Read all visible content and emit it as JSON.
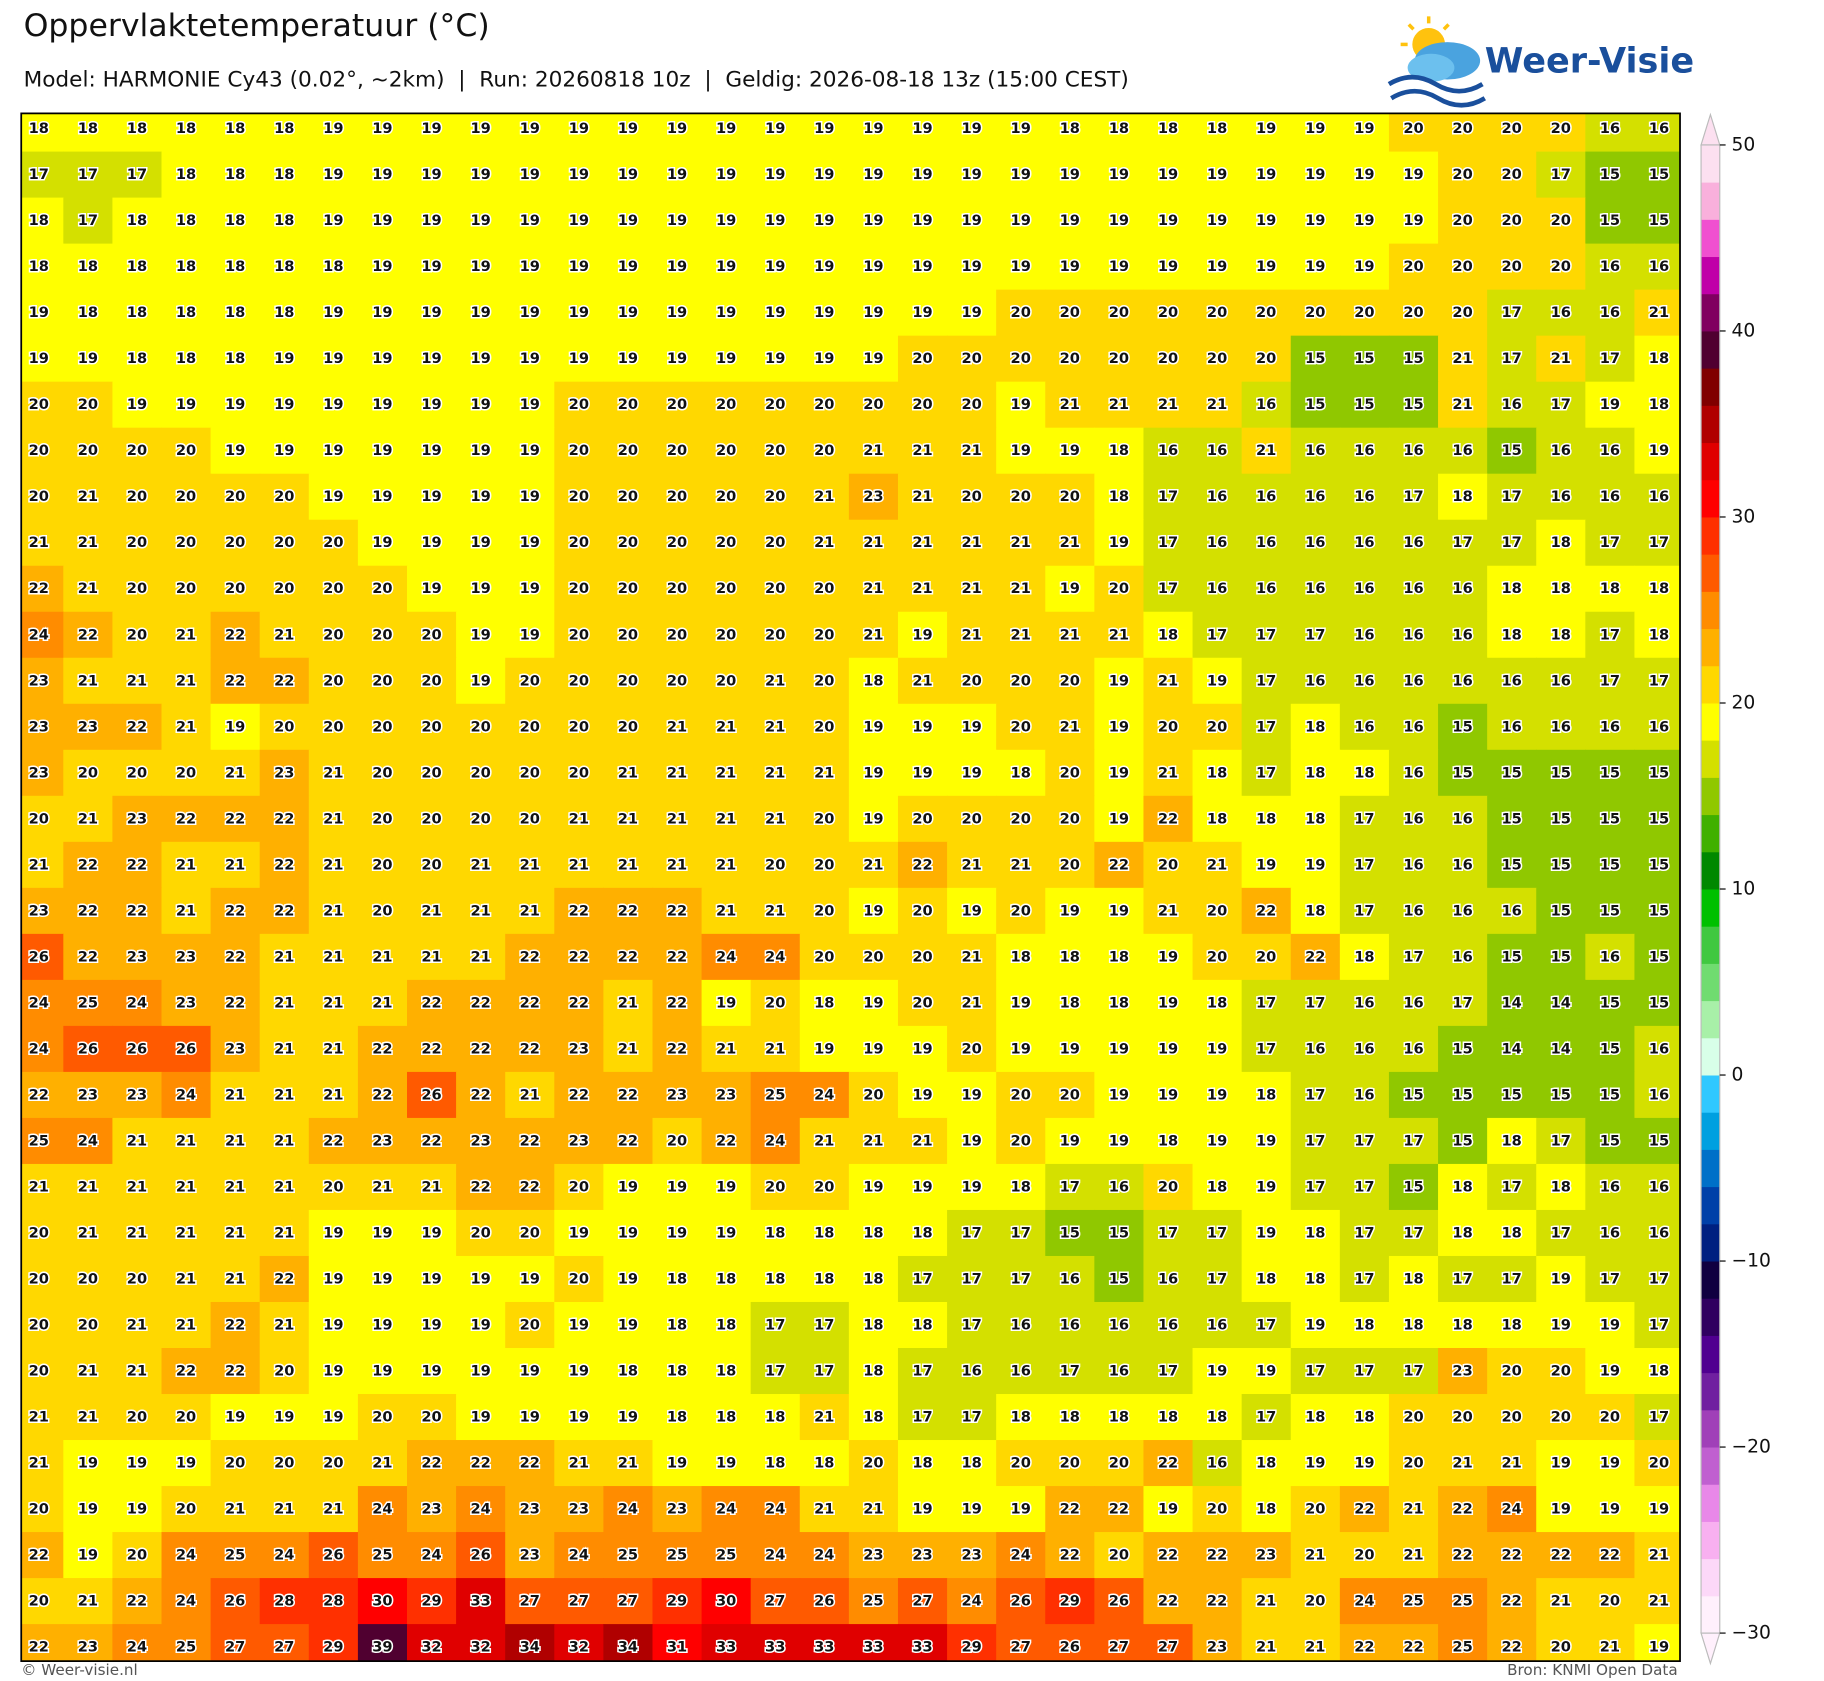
{
  "header": {
    "title": "Oppervlaktetemperatuur (°C)",
    "subtitle": "Model: HARMONIE Cy43 (0.02°, ~2km)  |  Run: 20260818 10z  |  Geldig: 2026-08-18 13z (15:00 CEST)",
    "logo": "Weer-Visie"
  },
  "map": {
    "rows": [
      [
        18,
        18,
        18,
        18,
        18,
        18,
        19,
        19,
        19,
        19,
        19,
        19,
        19,
        19,
        19,
        19,
        19,
        19,
        19,
        19,
        19,
        18,
        18,
        18,
        18,
        19,
        19,
        19,
        20,
        20,
        20,
        20,
        16,
        16
      ],
      [
        17,
        17,
        17,
        18,
        18,
        18,
        19,
        19,
        19,
        19,
        19,
        19,
        19,
        19,
        19,
        19,
        19,
        19,
        19,
        19,
        19,
        19,
        19,
        19,
        19,
        19,
        19,
        19,
        19,
        20,
        20,
        17,
        15,
        15
      ],
      [
        18,
        17,
        18,
        18,
        18,
        18,
        19,
        19,
        19,
        19,
        19,
        19,
        19,
        19,
        19,
        19,
        19,
        19,
        19,
        19,
        19,
        19,
        19,
        19,
        19,
        19,
        19,
        19,
        19,
        20,
        20,
        20,
        15,
        15
      ],
      [
        18,
        18,
        18,
        18,
        18,
        18,
        18,
        19,
        19,
        19,
        19,
        19,
        19,
        19,
        19,
        19,
        19,
        19,
        19,
        19,
        19,
        19,
        19,
        19,
        19,
        19,
        19,
        19,
        20,
        20,
        20,
        20,
        16,
        16
      ],
      [
        19,
        18,
        18,
        18,
        18,
        18,
        19,
        19,
        19,
        19,
        19,
        19,
        19,
        19,
        19,
        19,
        19,
        19,
        19,
        19,
        20,
        20,
        20,
        20,
        20,
        20,
        20,
        20,
        20,
        20,
        17,
        16,
        16,
        21
      ],
      [
        19,
        19,
        18,
        18,
        18,
        19,
        19,
        19,
        19,
        19,
        19,
        19,
        19,
        19,
        19,
        19,
        19,
        19,
        20,
        20,
        20,
        20,
        20,
        20,
        20,
        20,
        15,
        15,
        15,
        21,
        17,
        21,
        17,
        18
      ],
      [
        20,
        20,
        19,
        19,
        19,
        19,
        19,
        19,
        19,
        19,
        19,
        20,
        20,
        20,
        20,
        20,
        20,
        20,
        20,
        20,
        19,
        21,
        21,
        21,
        21,
        16,
        15,
        15,
        15,
        21,
        16,
        17,
        19,
        18
      ],
      [
        20,
        20,
        20,
        20,
        19,
        19,
        19,
        19,
        19,
        19,
        19,
        20,
        20,
        20,
        20,
        20,
        20,
        21,
        21,
        21,
        19,
        19,
        18,
        16,
        16,
        21,
        16,
        16,
        16,
        16,
        15,
        16,
        16,
        19
      ],
      [
        20,
        21,
        20,
        20,
        20,
        20,
        19,
        19,
        19,
        19,
        19,
        20,
        20,
        20,
        20,
        20,
        21,
        23,
        21,
        20,
        20,
        20,
        18,
        17,
        16,
        16,
        16,
        16,
        17,
        18,
        17,
        16,
        16,
        16
      ],
      [
        21,
        21,
        20,
        20,
        20,
        20,
        20,
        19,
        19,
        19,
        19,
        20,
        20,
        20,
        20,
        20,
        21,
        21,
        21,
        21,
        21,
        21,
        19,
        17,
        16,
        16,
        16,
        16,
        16,
        17,
        17,
        18,
        17,
        17
      ],
      [
        22,
        21,
        20,
        20,
        20,
        20,
        20,
        20,
        19,
        19,
        19,
        20,
        20,
        20,
        20,
        20,
        20,
        21,
        21,
        21,
        21,
        19,
        20,
        17,
        16,
        16,
        16,
        16,
        16,
        16,
        18,
        18,
        18,
        18
      ],
      [
        24,
        22,
        20,
        21,
        22,
        21,
        20,
        20,
        20,
        19,
        19,
        20,
        20,
        20,
        20,
        20,
        20,
        21,
        19,
        21,
        21,
        21,
        21,
        18,
        17,
        17,
        17,
        16,
        16,
        16,
        18,
        18,
        17,
        18
      ],
      [
        23,
        21,
        21,
        21,
        22,
        22,
        20,
        20,
        20,
        19,
        20,
        20,
        20,
        20,
        20,
        21,
        20,
        18,
        21,
        20,
        20,
        20,
        19,
        21,
        19,
        17,
        16,
        16,
        16,
        16,
        16,
        16,
        17,
        17
      ],
      [
        23,
        23,
        22,
        21,
        19,
        20,
        20,
        20,
        20,
        20,
        20,
        20,
        20,
        21,
        21,
        21,
        20,
        19,
        19,
        19,
        20,
        21,
        19,
        20,
        20,
        17,
        18,
        16,
        16,
        15,
        16,
        16,
        16,
        16
      ],
      [
        23,
        20,
        20,
        20,
        21,
        23,
        21,
        20,
        20,
        20,
        20,
        20,
        21,
        21,
        21,
        21,
        21,
        19,
        19,
        19,
        18,
        20,
        19,
        21,
        18,
        17,
        18,
        18,
        16,
        15,
        15,
        15,
        15,
        15
      ],
      [
        20,
        21,
        23,
        22,
        22,
        22,
        21,
        20,
        20,
        20,
        20,
        21,
        21,
        21,
        21,
        21,
        20,
        19,
        20,
        20,
        20,
        20,
        19,
        22,
        18,
        18,
        18,
        17,
        16,
        16,
        15,
        15,
        15,
        15
      ],
      [
        21,
        22,
        22,
        21,
        21,
        22,
        21,
        20,
        20,
        21,
        21,
        21,
        21,
        21,
        21,
        20,
        20,
        21,
        22,
        21,
        21,
        20,
        22,
        20,
        21,
        19,
        19,
        17,
        16,
        16,
        15,
        15,
        15,
        15
      ],
      [
        23,
        22,
        22,
        21,
        22,
        22,
        21,
        20,
        21,
        21,
        21,
        22,
        22,
        22,
        21,
        21,
        20,
        19,
        20,
        19,
        20,
        19,
        19,
        21,
        20,
        22,
        18,
        17,
        16,
        16,
        16,
        15,
        15,
        15
      ],
      [
        26,
        22,
        23,
        23,
        22,
        21,
        21,
        21,
        21,
        21,
        22,
        22,
        22,
        22,
        24,
        24,
        20,
        20,
        20,
        21,
        18,
        18,
        18,
        19,
        20,
        20,
        22,
        18,
        17,
        16,
        15,
        15,
        16,
        15
      ],
      [
        24,
        25,
        24,
        23,
        22,
        21,
        21,
        21,
        22,
        22,
        22,
        22,
        21,
        22,
        19,
        20,
        18,
        19,
        20,
        21,
        19,
        18,
        18,
        19,
        18,
        17,
        17,
        16,
        16,
        17,
        14,
        14,
        15,
        15
      ],
      [
        24,
        26,
        26,
        26,
        23,
        21,
        21,
        22,
        22,
        22,
        22,
        23,
        21,
        22,
        21,
        21,
        19,
        19,
        19,
        20,
        19,
        19,
        19,
        19,
        19,
        17,
        16,
        16,
        16,
        15,
        14,
        14,
        15,
        16
      ],
      [
        22,
        23,
        23,
        24,
        21,
        21,
        21,
        22,
        26,
        22,
        21,
        22,
        22,
        23,
        23,
        25,
        24,
        20,
        19,
        19,
        20,
        20,
        19,
        19,
        19,
        18,
        17,
        16,
        15,
        15,
        15,
        15,
        15,
        16
      ],
      [
        25,
        24,
        21,
        21,
        21,
        21,
        22,
        23,
        22,
        23,
        22,
        23,
        22,
        20,
        22,
        24,
        21,
        21,
        21,
        19,
        20,
        19,
        19,
        18,
        19,
        19,
        17,
        17,
        17,
        15,
        18,
        17,
        15,
        15
      ],
      [
        21,
        21,
        21,
        21,
        21,
        21,
        20,
        21,
        21,
        22,
        22,
        20,
        19,
        19,
        19,
        20,
        20,
        19,
        19,
        19,
        18,
        17,
        16,
        20,
        18,
        19,
        17,
        17,
        15,
        18,
        17,
        18,
        16,
        16
      ],
      [
        20,
        21,
        21,
        21,
        21,
        21,
        19,
        19,
        19,
        20,
        20,
        19,
        19,
        19,
        19,
        18,
        18,
        18,
        18,
        17,
        17,
        15,
        15,
        17,
        17,
        19,
        18,
        17,
        17,
        18,
        18,
        17,
        16,
        16
      ],
      [
        20,
        20,
        20,
        21,
        21,
        22,
        19,
        19,
        19,
        19,
        19,
        20,
        19,
        18,
        18,
        18,
        18,
        18,
        17,
        17,
        17,
        16,
        15,
        16,
        17,
        18,
        18,
        17,
        18,
        17,
        17,
        19,
        17,
        17
      ],
      [
        20,
        20,
        21,
        21,
        22,
        21,
        19,
        19,
        19,
        19,
        20,
        19,
        19,
        18,
        18,
        17,
        17,
        18,
        18,
        17,
        16,
        16,
        16,
        16,
        16,
        17,
        19,
        18,
        18,
        18,
        18,
        19,
        19,
        17
      ],
      [
        20,
        21,
        21,
        22,
        22,
        20,
        19,
        19,
        19,
        19,
        19,
        19,
        18,
        18,
        18,
        17,
        17,
        18,
        17,
        16,
        16,
        17,
        16,
        17,
        19,
        19,
        17,
        17,
        17,
        23,
        20,
        20,
        19,
        18
      ],
      [
        21,
        21,
        20,
        20,
        19,
        19,
        19,
        20,
        20,
        19,
        19,
        19,
        19,
        18,
        18,
        18,
        21,
        18,
        17,
        17,
        18,
        18,
        18,
        18,
        18,
        17,
        18,
        18,
        20,
        20,
        20,
        20,
        20,
        17
      ],
      [
        21,
        19,
        19,
        19,
        20,
        20,
        20,
        21,
        22,
        22,
        22,
        21,
        21,
        19,
        19,
        18,
        18,
        20,
        18,
        18,
        20,
        20,
        20,
        22,
        16,
        18,
        19,
        19,
        20,
        21,
        21,
        19,
        19,
        20
      ],
      [
        20,
        19,
        19,
        20,
        21,
        21,
        21,
        24,
        23,
        24,
        23,
        23,
        24,
        23,
        24,
        24,
        21,
        21,
        19,
        19,
        19,
        22,
        22,
        19,
        20,
        18,
        20,
        22,
        21,
        22,
        24,
        19,
        19,
        19
      ],
      [
        22,
        19,
        20,
        24,
        25,
        24,
        26,
        25,
        24,
        26,
        23,
        24,
        25,
        25,
        25,
        24,
        24,
        23,
        23,
        23,
        24,
        22,
        20,
        22,
        22,
        23,
        21,
        20,
        21,
        22,
        22,
        22,
        22,
        21
      ],
      [
        20,
        21,
        22,
        24,
        26,
        28,
        28,
        30,
        29,
        33,
        27,
        27,
        27,
        29,
        30,
        27,
        26,
        25,
        27,
        24,
        26,
        29,
        26,
        22,
        22,
        21,
        20,
        24,
        25,
        25,
        22,
        21,
        20,
        21
      ],
      [
        22,
        23,
        24,
        25,
        27,
        27,
        29,
        39,
        32,
        32,
        34,
        32,
        34,
        31,
        33,
        33,
        33,
        33,
        33,
        29,
        27,
        26,
        27,
        27,
        23,
        21,
        21,
        22,
        22,
        25,
        22,
        20,
        21,
        19
      ]
    ]
  },
  "colorbar": {
    "range": [
      -30,
      50
    ],
    "ticks": [
      {
        "value": -30,
        "label": "−30"
      },
      {
        "value": -20,
        "label": "−20"
      },
      {
        "value": -10,
        "label": "−10"
      },
      0,
      10,
      20,
      30,
      40,
      50
    ],
    "colors": [
      "#fff0fc",
      "#fcd8f8",
      "#f8b0f0",
      "#e888e8",
      "#c060d0",
      "#a040b8",
      "#7020a0",
      "#500090",
      "#300060",
      "#100040",
      "#002080",
      "#0040a8",
      "#0070c8",
      "#00a0e0",
      "#30c8ff",
      "#d8ffe8",
      "#a8f0a8",
      "#70dc70",
      "#40c840",
      "#00c000",
      "#008800",
      "#40b000",
      "#90c800",
      "#d4e000",
      "#ffff00",
      "#ffd800",
      "#ffb000",
      "#ff8c00",
      "#ff5a00",
      "#ff3000",
      "#ff0000",
      "#e00000",
      "#b00000",
      "#800000",
      "#500030",
      "#800060",
      "#c000a8",
      "#f050d0",
      "#f9b0dc",
      "#fce0f0"
    ]
  },
  "footer": {
    "credit": "© Weer-visie.nl",
    "source": "Bron: KNMI Open Data"
  }
}
